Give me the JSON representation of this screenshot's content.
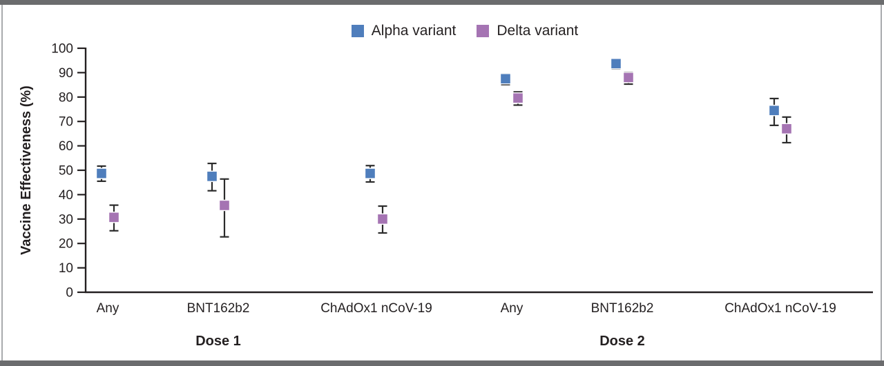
{
  "chart_data": {
    "type": "scatter",
    "title": "",
    "xlabel": "",
    "ylabel": "Vaccine Effectiveness (%)",
    "ylim": [
      0,
      100
    ],
    "yticks": [
      0,
      10,
      20,
      30,
      40,
      50,
      60,
      70,
      80,
      90,
      100
    ],
    "grid": false,
    "legend_position": "top-center",
    "error_bars": "confidence interval whiskers",
    "error_bar_color": "#2b2b2b",
    "axis_color": "#231f20",
    "series": [
      {
        "name": "Alpha variant",
        "color": "#4f7ebc"
      },
      {
        "name": "Delta variant",
        "color": "#a574b3"
      }
    ],
    "groups": [
      {
        "label": "Dose 1",
        "categories": [
          {
            "label": "Any",
            "points": [
              {
                "series": "Alpha variant",
                "value": 48.7,
                "ci_low": 45.5,
                "ci_high": 51.7
              },
              {
                "series": "Delta variant",
                "value": 30.7,
                "ci_low": 25.2,
                "ci_high": 35.7
              }
            ]
          },
          {
            "label": "BNT162b2",
            "points": [
              {
                "series": "Alpha variant",
                "value": 47.5,
                "ci_low": 41.6,
                "ci_high": 52.8
              },
              {
                "series": "Delta variant",
                "value": 35.6,
                "ci_low": 22.7,
                "ci_high": 46.4
              }
            ]
          },
          {
            "label": "ChAdOx1 nCoV-19",
            "points": [
              {
                "series": "Alpha variant",
                "value": 48.7,
                "ci_low": 45.2,
                "ci_high": 51.9
              },
              {
                "series": "Delta variant",
                "value": 30.0,
                "ci_low": 24.3,
                "ci_high": 35.3
              }
            ]
          }
        ]
      },
      {
        "label": "Dose 2",
        "categories": [
          {
            "label": "Any",
            "points": [
              {
                "series": "Alpha variant",
                "value": 87.5,
                "ci_low": 85.1,
                "ci_high": 89.5
              },
              {
                "series": "Delta variant",
                "value": 79.6,
                "ci_low": 76.7,
                "ci_high": 82.1
              }
            ]
          },
          {
            "label": "BNT162b2",
            "points": [
              {
                "series": "Alpha variant",
                "value": 93.7,
                "ci_low": 91.6,
                "ci_high": 95.3
              },
              {
                "series": "Delta variant",
                "value": 88.0,
                "ci_low": 85.3,
                "ci_high": 90.1
              }
            ]
          },
          {
            "label": "ChAdOx1 nCoV-19",
            "points": [
              {
                "series": "Alpha variant",
                "value": 74.5,
                "ci_low": 68.4,
                "ci_high": 79.4
              },
              {
                "series": "Delta variant",
                "value": 67.0,
                "ci_low": 61.3,
                "ci_high": 71.8
              }
            ]
          }
        ]
      }
    ]
  }
}
